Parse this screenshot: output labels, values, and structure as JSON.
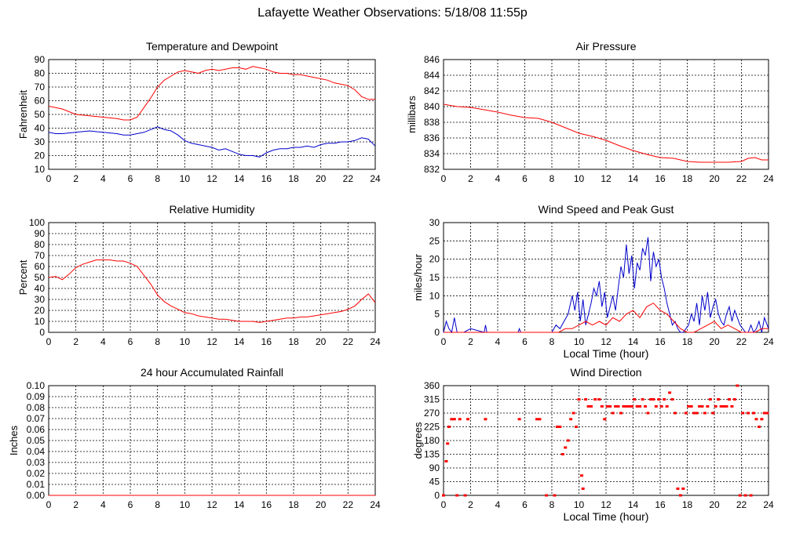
{
  "page": {
    "title": "Lafayette Weather Observations: 5/18/08 11:55p"
  },
  "colors": {
    "red": "#ff0000",
    "blue": "#0000cc",
    "grid": "#000000",
    "frame": "#000000"
  },
  "chart_data": [
    {
      "id": "temp",
      "type": "line",
      "title": "Temperature and Dewpoint",
      "xlabel": "",
      "ylabel": "Fahrenheit",
      "xlim": [
        0,
        24
      ],
      "ylim": [
        10,
        90
      ],
      "xticks": [
        0,
        2,
        4,
        6,
        8,
        10,
        12,
        14,
        16,
        18,
        20,
        22,
        24
      ],
      "yticks": [
        10,
        20,
        30,
        40,
        50,
        60,
        70,
        80,
        90
      ],
      "grid": true,
      "series": [
        {
          "color": "red",
          "x": [
            0,
            0.5,
            1,
            2,
            3,
            4,
            5,
            5.5,
            6,
            6.5,
            7,
            7.5,
            8,
            8.5,
            9,
            9.5,
            10,
            10.5,
            11,
            11.5,
            12,
            12.5,
            13,
            13.5,
            14,
            14.5,
            15,
            15.5,
            16,
            16.5,
            17,
            17.5,
            18,
            18.5,
            19,
            19.5,
            20,
            20.5,
            21,
            21.5,
            22,
            22.5,
            23,
            23.5,
            24
          ],
          "y": [
            56,
            55,
            54,
            50,
            49,
            48,
            47,
            46,
            46,
            48,
            55,
            62,
            70,
            75,
            78,
            81,
            82,
            81,
            80,
            82,
            83,
            82,
            83,
            84,
            84,
            83,
            85,
            84,
            83,
            81,
            80,
            80,
            79,
            79,
            78,
            77,
            76,
            75,
            73,
            72,
            71,
            68,
            63,
            61,
            61
          ]
        },
        {
          "color": "blue",
          "x": [
            0,
            0.5,
            1,
            2,
            3,
            4,
            5,
            5.5,
            6,
            6.5,
            7,
            7.5,
            8,
            8.5,
            9,
            9.5,
            10,
            10.5,
            11,
            11.5,
            12,
            12.5,
            13,
            13.5,
            14,
            14.5,
            15,
            15.5,
            16,
            16.5,
            17,
            17.5,
            18,
            18.5,
            19,
            19.5,
            20,
            20.5,
            21,
            21.5,
            22,
            22.5,
            23,
            23.5,
            24
          ],
          "y": [
            37,
            36,
            36,
            37,
            38,
            37,
            36,
            35,
            35,
            36,
            37,
            39,
            41,
            39,
            38,
            35,
            31,
            29,
            28,
            27,
            26,
            24,
            25,
            23,
            21,
            20,
            20,
            19,
            22,
            24,
            25,
            25,
            26,
            26,
            27,
            26,
            28,
            29,
            29,
            30,
            30,
            31,
            33,
            32,
            27
          ]
        }
      ]
    },
    {
      "id": "pressure",
      "type": "line",
      "title": "Air Pressure",
      "xlabel": "",
      "ylabel": "millibars",
      "xlim": [
        0,
        24
      ],
      "ylim": [
        832,
        846
      ],
      "xticks": [
        0,
        2,
        4,
        6,
        8,
        10,
        12,
        14,
        16,
        18,
        20,
        22,
        24
      ],
      "yticks": [
        832,
        834,
        836,
        838,
        840,
        842,
        844,
        846
      ],
      "grid": true,
      "series": [
        {
          "color": "red",
          "x": [
            0,
            1,
            2,
            3,
            4,
            5,
            6,
            7,
            8,
            9,
            10,
            11,
            12,
            13,
            14,
            15,
            16,
            17,
            18,
            19,
            20,
            21,
            22,
            22.5,
            23,
            23.5,
            24
          ],
          "y": [
            840.3,
            840.0,
            839.9,
            839.6,
            839.3,
            838.9,
            838.6,
            838.5,
            838.0,
            837.3,
            836.6,
            836.2,
            835.7,
            835.0,
            834.4,
            833.9,
            833.5,
            833.4,
            833.0,
            832.9,
            832.9,
            832.9,
            833.0,
            833.4,
            833.5,
            833.2,
            833.2
          ]
        }
      ]
    },
    {
      "id": "humidity",
      "type": "line",
      "title": "Relative Humidity",
      "xlabel": "",
      "ylabel": "Percent",
      "xlim": [
        0,
        24
      ],
      "ylim": [
        0,
        100
      ],
      "xticks": [
        0,
        2,
        4,
        6,
        8,
        10,
        12,
        14,
        16,
        18,
        20,
        22,
        24
      ],
      "yticks": [
        0,
        10,
        20,
        30,
        40,
        50,
        60,
        70,
        80,
        90,
        100
      ],
      "grid": true,
      "series": [
        {
          "color": "red",
          "x": [
            0,
            0.5,
            1,
            1.5,
            2,
            2.5,
            3,
            3.5,
            4,
            4.5,
            5,
            5.5,
            6,
            6.5,
            7,
            7.5,
            8,
            8.5,
            9,
            9.5,
            10,
            10.5,
            11,
            11.5,
            12,
            12.5,
            13,
            13.5,
            14,
            14.5,
            15,
            15.5,
            16,
            16.5,
            17,
            17.5,
            18,
            18.5,
            19,
            19.5,
            20,
            20.5,
            21,
            21.5,
            22,
            22.5,
            23,
            23.5,
            24
          ],
          "y": [
            50,
            51,
            48,
            53,
            59,
            62,
            64,
            66,
            66,
            66,
            65,
            65,
            63,
            60,
            52,
            44,
            34,
            28,
            24,
            21,
            18,
            17,
            15,
            14,
            13,
            12,
            12,
            11,
            10,
            10,
            10,
            9,
            10,
            11,
            12,
            13,
            13,
            14,
            14,
            15,
            16,
            17,
            18,
            19,
            21,
            24,
            30,
            35,
            27
          ]
        }
      ]
    },
    {
      "id": "wind",
      "type": "line",
      "title": "Wind Speed and Peak Gust",
      "xlabel": "Local Time (hour)",
      "ylabel": "miles/hour",
      "xlim": [
        0,
        24
      ],
      "ylim": [
        0,
        30
      ],
      "xticks": [
        0,
        2,
        4,
        6,
        8,
        10,
        12,
        14,
        16,
        18,
        20,
        22,
        24
      ],
      "yticks": [
        0,
        5,
        10,
        15,
        20,
        25,
        30
      ],
      "grid": true,
      "series": [
        {
          "color": "blue",
          "x": [
            0,
            0.2,
            0.4,
            0.6,
            0.8,
            1,
            1.5,
            2,
            3,
            3.1,
            3.2,
            5.5,
            5.6,
            5.7,
            7,
            8,
            8.3,
            8.6,
            8.9,
            9.2,
            9.5,
            9.7,
            9.9,
            10.1,
            10.3,
            10.5,
            10.7,
            10.9,
            11.1,
            11.3,
            11.5,
            11.7,
            11.9,
            12.1,
            12.3,
            12.5,
            12.7,
            12.9,
            13.1,
            13.3,
            13.5,
            13.7,
            13.9,
            14.1,
            14.3,
            14.5,
            14.7,
            14.9,
            15.1,
            15.3,
            15.5,
            15.7,
            15.9,
            16.1,
            16.3,
            16.5,
            16.7,
            16.9,
            17.1,
            17.3,
            17.5,
            17.7,
            17.9,
            18.1,
            18.3,
            18.5,
            18.7,
            18.9,
            19.1,
            19.3,
            19.5,
            19.7,
            19.9,
            20.1,
            20.3,
            20.5,
            20.7,
            20.9,
            21.1,
            21.3,
            21.5,
            21.7,
            21.9,
            22.1,
            22.3,
            22.5,
            22.7,
            22.9,
            23.1,
            23.3,
            23.5,
            23.7,
            24
          ],
          "y": [
            0,
            3,
            1,
            0,
            4,
            0,
            0,
            1,
            0,
            2,
            0,
            0,
            1,
            0,
            0,
            0,
            2,
            1,
            3,
            5,
            10,
            6,
            11,
            3,
            9,
            2,
            5,
            8,
            12,
            10,
            14,
            7,
            11,
            4,
            7,
            10,
            6,
            12,
            18,
            15,
            24,
            16,
            21,
            12,
            19,
            17,
            23,
            21,
            26,
            14,
            22,
            18,
            20,
            15,
            12,
            8,
            5,
            2,
            3,
            1,
            0,
            0,
            1,
            2,
            5,
            3,
            8,
            2,
            10,
            6,
            11,
            4,
            7,
            9,
            5,
            3,
            2,
            5,
            7,
            3,
            6,
            4,
            2,
            1,
            0,
            0,
            2,
            0,
            1,
            3,
            0,
            4,
            1
          ]
        },
        {
          "color": "red",
          "x": [
            0,
            2,
            4,
            6,
            8,
            8.5,
            9,
            9.5,
            10,
            10.5,
            11,
            11.5,
            12,
            12.5,
            13,
            13.5,
            14,
            14.5,
            15,
            15.5,
            16,
            16.5,
            17,
            17.5,
            18,
            18.5,
            19,
            19.5,
            20,
            20.5,
            21,
            21.5,
            22,
            22.5,
            23,
            23.5,
            24
          ],
          "y": [
            0,
            0,
            0,
            0,
            0,
            0,
            1,
            1,
            2,
            3,
            2,
            3,
            2,
            4,
            3,
            5,
            6,
            4,
            7,
            8,
            6,
            5,
            3,
            1,
            0,
            0,
            1,
            2,
            3,
            1,
            2,
            1,
            0,
            0,
            0,
            1,
            1
          ]
        }
      ]
    },
    {
      "id": "rain",
      "type": "line",
      "title": "24 hour Accumulated Rainfall",
      "xlabel": "",
      "ylabel": "Inches",
      "xlim": [
        0,
        24
      ],
      "ylim": [
        0,
        0.1
      ],
      "xticks": [
        0,
        2,
        4,
        6,
        8,
        10,
        12,
        14,
        16,
        18,
        20,
        22,
        24
      ],
      "yticks": [
        "0.00",
        "0.01",
        "0.02",
        "0.03",
        "0.04",
        "0.05",
        "0.06",
        "0.07",
        "0.08",
        "0.09",
        "0.10"
      ],
      "grid": true,
      "series": [
        {
          "color": "red",
          "x": [
            0,
            24
          ],
          "y": [
            0,
            0
          ]
        }
      ]
    },
    {
      "id": "direction",
      "type": "scatter",
      "title": "Wind Direction",
      "xlabel": "Local Time (hour)",
      "ylabel": "degrees",
      "xlim": [
        0,
        24
      ],
      "ylim": [
        0,
        360
      ],
      "xticks": [
        0,
        2,
        4,
        6,
        8,
        10,
        12,
        14,
        16,
        18,
        20,
        22,
        24
      ],
      "yticks": [
        0,
        45,
        90,
        135,
        180,
        225,
        270,
        315,
        360
      ],
      "grid": true,
      "series": [
        {
          "color": "red",
          "x": [
            0,
            0.2,
            0.3,
            0.4,
            0.6,
            0.8,
            1.0,
            1.2,
            1.6,
            1.8,
            3.1,
            5.6,
            6.9,
            7.1,
            7.6,
            8.2,
            8.4,
            8.6,
            8.8,
            9.0,
            9.2,
            9.4,
            9.6,
            9.8,
            10.0,
            10.2,
            10.3,
            10.5,
            10.7,
            10.9,
            11.2,
            11.5,
            11.7,
            11.9,
            12.1,
            12.3,
            12.5,
            12.7,
            12.9,
            13.1,
            13.3,
            13.5,
            13.7,
            13.9,
            14.1,
            14.3,
            14.5,
            14.7,
            14.9,
            15.1,
            15.3,
            15.5,
            15.7,
            15.9,
            16.1,
            16.3,
            16.5,
            16.7,
            16.9,
            17.1,
            17.3,
            17.5,
            17.7,
            17.9,
            18.1,
            18.3,
            18.5,
            18.7,
            18.9,
            19.1,
            19.3,
            19.5,
            19.7,
            19.9,
            20.1,
            20.3,
            20.5,
            20.7,
            20.9,
            21.1,
            21.3,
            21.5,
            21.7,
            21.9,
            22.1,
            22.3,
            22.5,
            22.7,
            22.9,
            23.1,
            23.3,
            23.5,
            23.7,
            23.9
          ],
          "y": [
            0,
            112,
            170,
            225,
            250,
            250,
            0,
            250,
            0,
            250,
            250,
            250,
            250,
            250,
            0,
            0,
            225,
            225,
            135,
            157,
            180,
            250,
            270,
            225,
            315,
            65,
            22,
            315,
            292,
            292,
            315,
            315,
            292,
            250,
            292,
            292,
            270,
            292,
            292,
            270,
            292,
            292,
            292,
            292,
            315,
            292,
            292,
            315,
            292,
            270,
            315,
            315,
            292,
            315,
            292,
            315,
            292,
            337,
            315,
            270,
            22,
            0,
            22,
            270,
            292,
            292,
            270,
            270,
            292,
            292,
            270,
            292,
            315,
            270,
            292,
            315,
            292,
            292,
            292,
            315,
            292,
            315,
            360,
            0,
            270,
            0,
            270,
            0,
            270,
            250,
            225,
            250,
            270,
            270
          ]
        }
      ]
    }
  ]
}
